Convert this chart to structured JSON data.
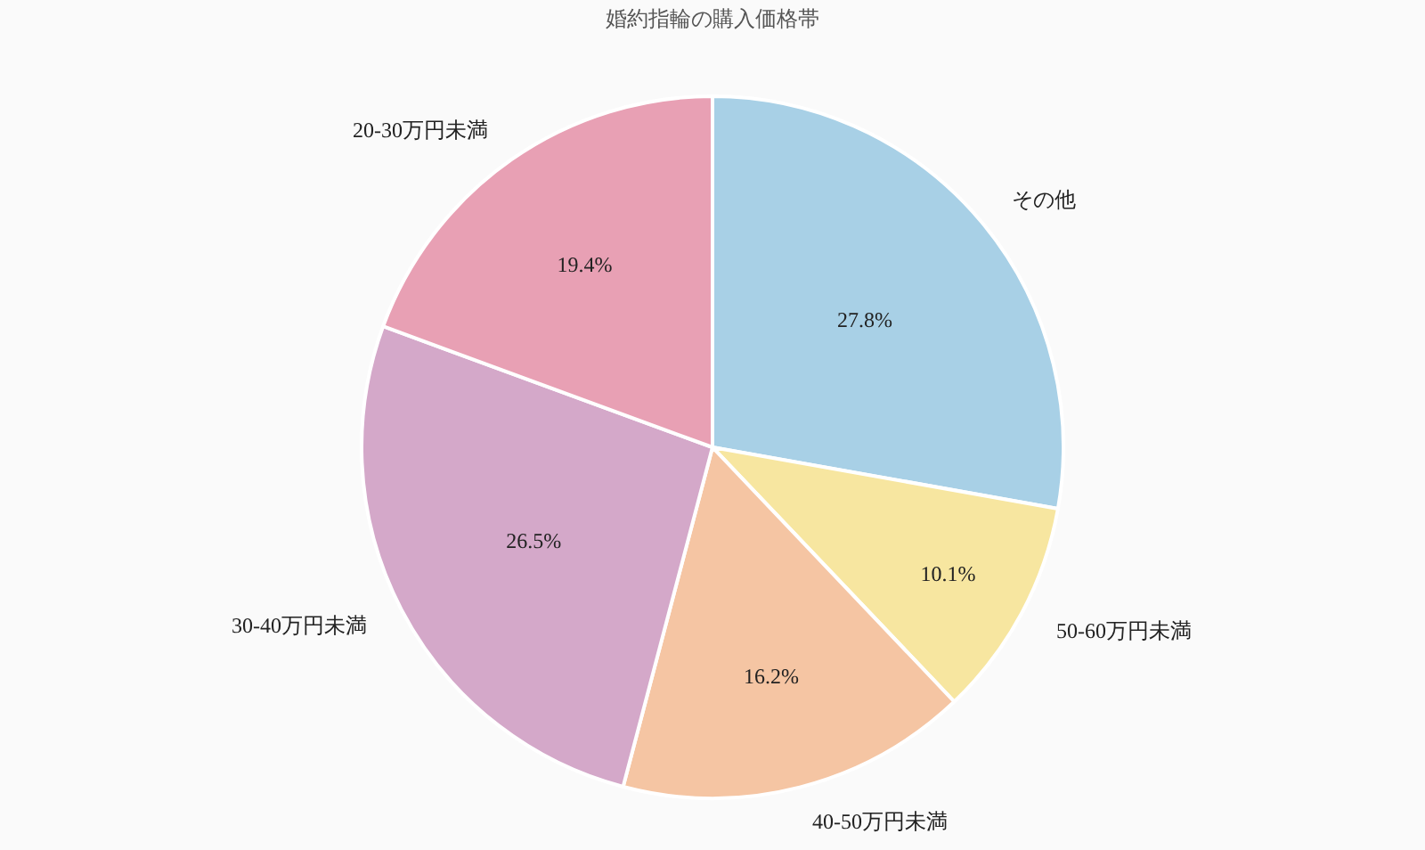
{
  "chart_data": {
    "type": "pie",
    "title": "婚約指輪の購入価格帯",
    "categories": [
      "その他",
      "50-60万円未満",
      "40-50万円未満",
      "30-40万円未満",
      "20-30万円未満"
    ],
    "values": [
      27.8,
      10.1,
      16.2,
      26.5,
      19.4
    ],
    "value_labels": [
      "27.8%",
      "10.1%",
      "16.2%",
      "26.5%",
      "19.4%"
    ],
    "colors": [
      "#a8d0e6",
      "#f7e6a0",
      "#f5c5a3",
      "#d4a8c9",
      "#e8a0b4"
    ]
  }
}
